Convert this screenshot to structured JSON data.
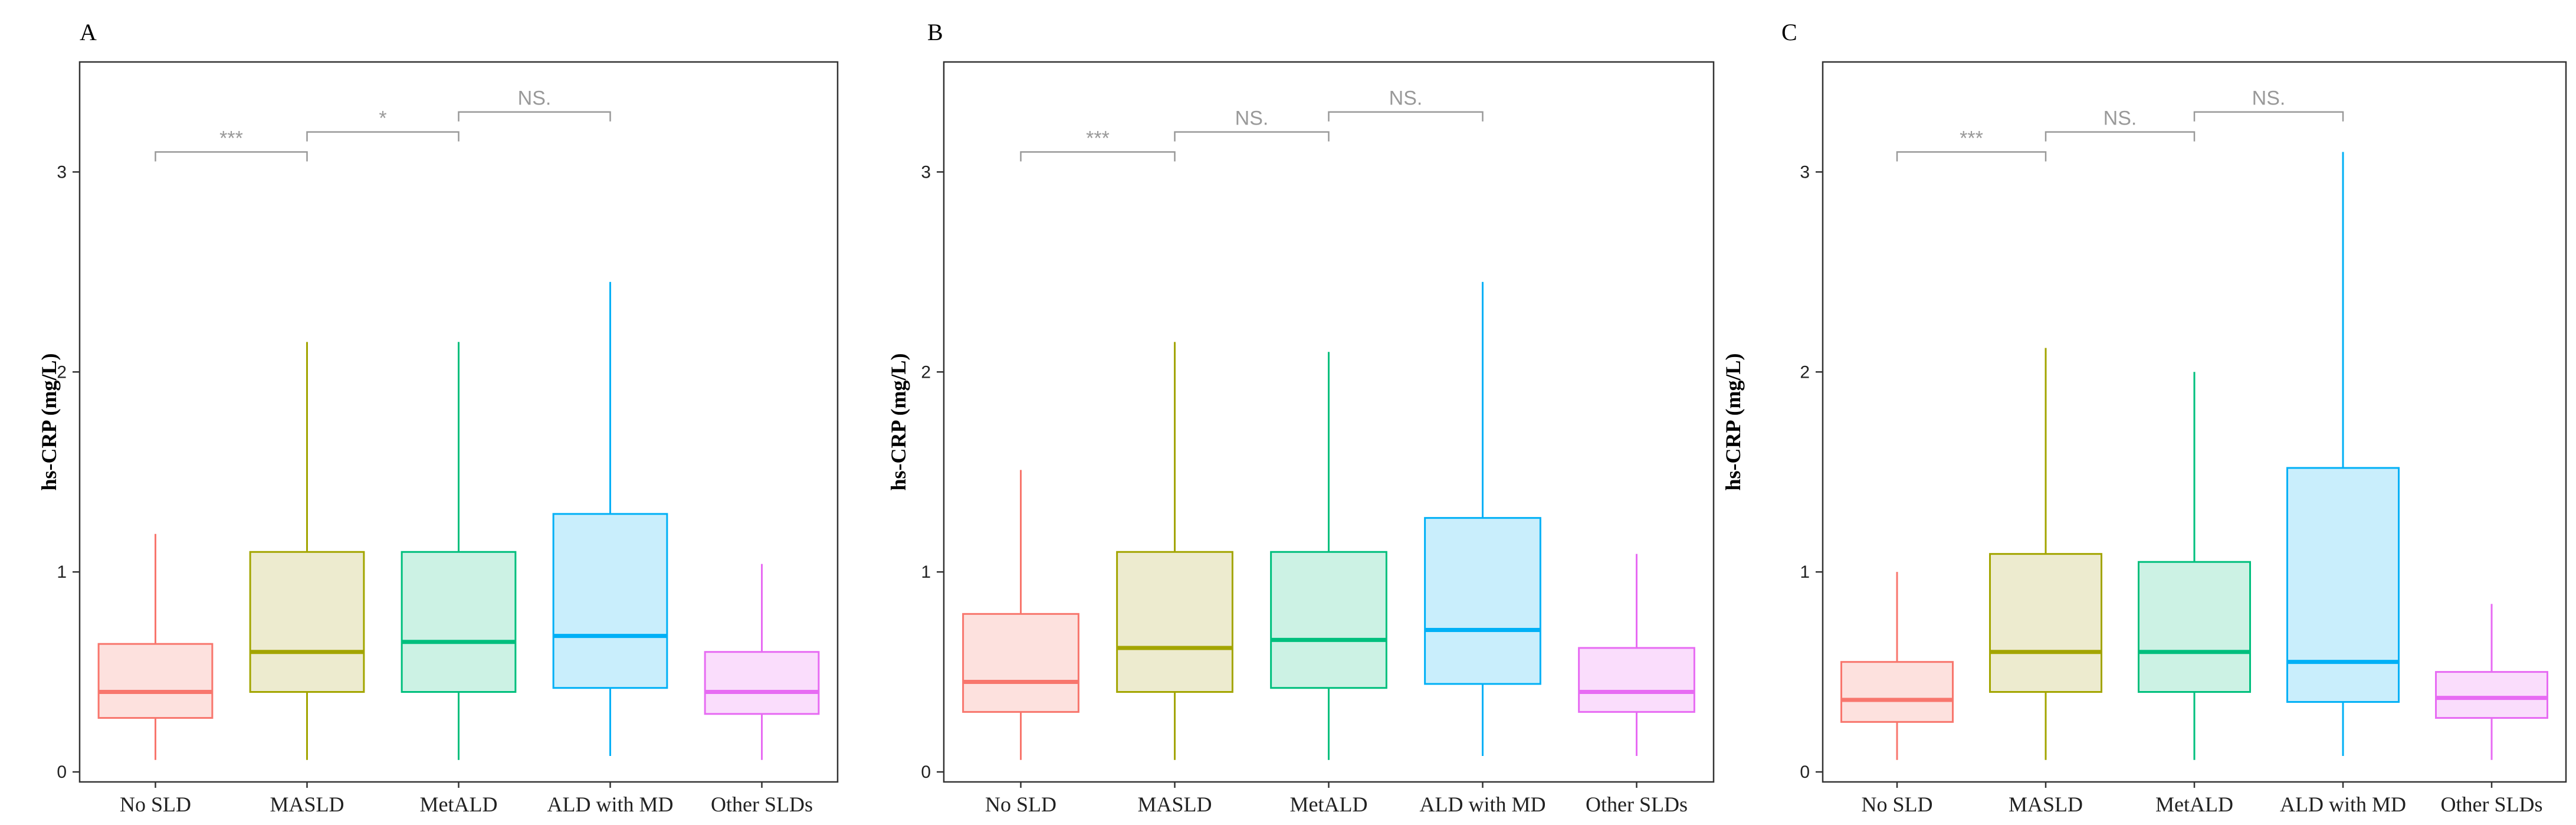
{
  "chart_data": [
    {
      "panel": "A",
      "type": "box",
      "ylabel": "hs-CRP (mg/L)",
      "xlabel": "",
      "ylim": [
        -0.05,
        3.55
      ],
      "yticks": [
        0,
        1,
        2,
        3
      ],
      "categories": [
        "No SLD",
        "MASLD",
        "MetALD",
        "ALD with MD",
        "Other SLDs"
      ],
      "boxes": [
        {
          "group": "No SLD",
          "whisker_low": 0.06,
          "q1": 0.27,
          "median": 0.4,
          "q3": 0.64,
          "whisker_high": 1.19,
          "color": "#F8766D",
          "fill": "#FDE1DE"
        },
        {
          "group": "MASLD",
          "whisker_low": 0.06,
          "q1": 0.4,
          "median": 0.6,
          "q3": 1.1,
          "whisker_high": 2.15,
          "color": "#A3A500",
          "fill": "#EDEBCF"
        },
        {
          "group": "MetALD",
          "whisker_low": 0.06,
          "q1": 0.4,
          "median": 0.65,
          "q3": 1.1,
          "whisker_high": 2.15,
          "color": "#00BF7D",
          "fill": "#CCF2E4"
        },
        {
          "group": "ALD with MD",
          "whisker_low": 0.08,
          "q1": 0.42,
          "median": 0.68,
          "q3": 1.29,
          "whisker_high": 2.45,
          "color": "#00B0F6",
          "fill": "#C9EEFC"
        },
        {
          "group": "Other SLDs",
          "whisker_low": 0.06,
          "q1": 0.29,
          "median": 0.4,
          "q3": 0.6,
          "whisker_high": 1.04,
          "color": "#E76BF3",
          "fill": "#FADDFC"
        }
      ],
      "comparisons": [
        {
          "from": "No SLD",
          "to": "MASLD",
          "label": "***",
          "y": 3.1
        },
        {
          "from": "MASLD",
          "to": "MetALD",
          "label": "*",
          "y": 3.2
        },
        {
          "from": "MetALD",
          "to": "ALD with MD",
          "label": "NS.",
          "y": 3.3
        }
      ]
    },
    {
      "panel": "B",
      "type": "box",
      "ylabel": "hs-CRP (mg/L)",
      "xlabel": "",
      "ylim": [
        -0.05,
        3.55
      ],
      "yticks": [
        0,
        1,
        2,
        3
      ],
      "categories": [
        "No SLD",
        "MASLD",
        "MetALD",
        "ALD with MD",
        "Other SLDs"
      ],
      "boxes": [
        {
          "group": "No SLD",
          "whisker_low": 0.06,
          "q1": 0.3,
          "median": 0.45,
          "q3": 0.79,
          "whisker_high": 1.51,
          "color": "#F8766D",
          "fill": "#FDE1DE"
        },
        {
          "group": "MASLD",
          "whisker_low": 0.06,
          "q1": 0.4,
          "median": 0.62,
          "q3": 1.1,
          "whisker_high": 2.15,
          "color": "#A3A500",
          "fill": "#EDEBCF"
        },
        {
          "group": "MetALD",
          "whisker_low": 0.06,
          "q1": 0.42,
          "median": 0.66,
          "q3": 1.1,
          "whisker_high": 2.1,
          "color": "#00BF7D",
          "fill": "#CCF2E4"
        },
        {
          "group": "ALD with MD",
          "whisker_low": 0.08,
          "q1": 0.44,
          "median": 0.71,
          "q3": 1.27,
          "whisker_high": 2.45,
          "color": "#00B0F6",
          "fill": "#C9EEFC"
        },
        {
          "group": "Other SLDs",
          "whisker_low": 0.08,
          "q1": 0.3,
          "median": 0.4,
          "q3": 0.62,
          "whisker_high": 1.09,
          "color": "#E76BF3",
          "fill": "#FADDFC"
        }
      ],
      "comparisons": [
        {
          "from": "No SLD",
          "to": "MASLD",
          "label": "***",
          "y": 3.1
        },
        {
          "from": "MASLD",
          "to": "MetALD",
          "label": "NS.",
          "y": 3.2
        },
        {
          "from": "MetALD",
          "to": "ALD with MD",
          "label": "NS.",
          "y": 3.3
        }
      ]
    },
    {
      "panel": "C",
      "type": "box",
      "ylabel": "hs-CRP (mg/L)",
      "xlabel": "",
      "ylim": [
        -0.05,
        3.55
      ],
      "yticks": [
        0,
        1,
        2,
        3
      ],
      "categories": [
        "No SLD",
        "MASLD",
        "MetALD",
        "ALD with MD",
        "Other SLDs"
      ],
      "boxes": [
        {
          "group": "No SLD",
          "whisker_low": 0.06,
          "q1": 0.25,
          "median": 0.36,
          "q3": 0.55,
          "whisker_high": 1.0,
          "color": "#F8766D",
          "fill": "#FDE1DE"
        },
        {
          "group": "MASLD",
          "whisker_low": 0.06,
          "q1": 0.4,
          "median": 0.6,
          "q3": 1.09,
          "whisker_high": 2.12,
          "color": "#A3A500",
          "fill": "#EDEBCF"
        },
        {
          "group": "MetALD",
          "whisker_low": 0.06,
          "q1": 0.4,
          "median": 0.6,
          "q3": 1.05,
          "whisker_high": 2.0,
          "color": "#00BF7D",
          "fill": "#CCF2E4"
        },
        {
          "group": "ALD with MD",
          "whisker_low": 0.08,
          "q1": 0.35,
          "median": 0.55,
          "q3": 1.52,
          "whisker_high": 3.1,
          "color": "#00B0F6",
          "fill": "#C9EEFC"
        },
        {
          "group": "Other SLDs",
          "whisker_low": 0.06,
          "q1": 0.27,
          "median": 0.37,
          "q3": 0.5,
          "whisker_high": 0.84,
          "color": "#E76BF3",
          "fill": "#FADDFC"
        }
      ],
      "comparisons": [
        {
          "from": "No SLD",
          "to": "MASLD",
          "label": "***",
          "y": 3.1
        },
        {
          "from": "MASLD",
          "to": "MetALD",
          "label": "NS.",
          "y": 3.2
        },
        {
          "from": "MetALD",
          "to": "ALD with MD",
          "label": "NS.",
          "y": 3.3
        }
      ]
    }
  ]
}
